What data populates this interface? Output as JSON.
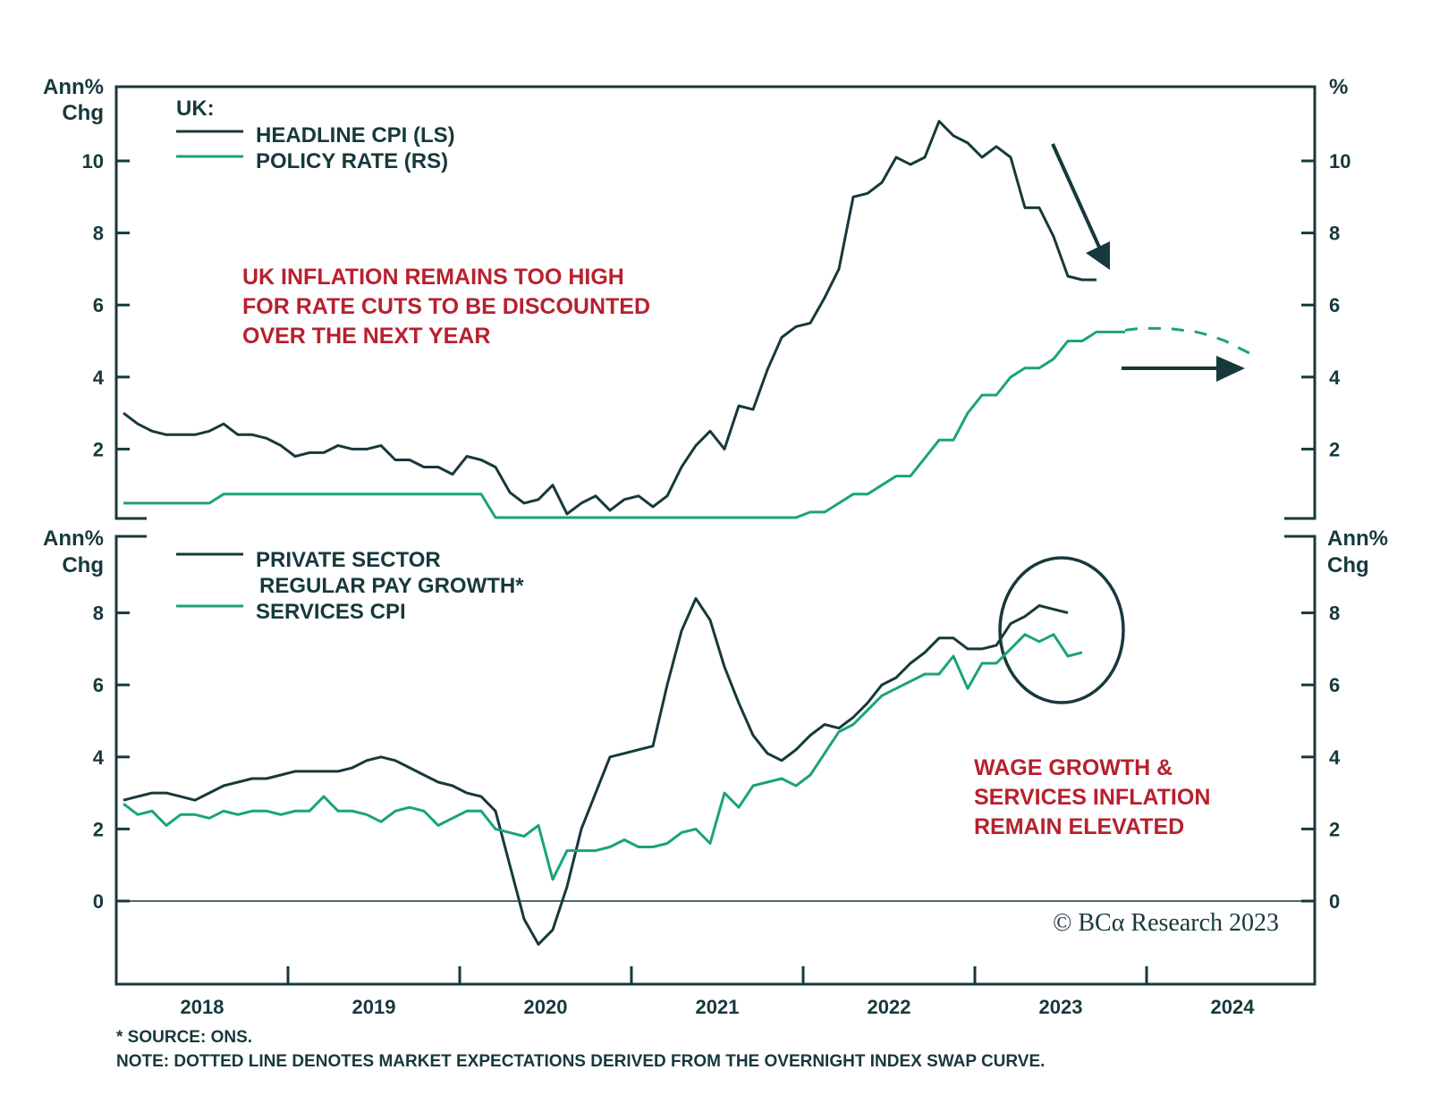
{
  "chart_data": [
    {
      "type": "line",
      "panel": "top",
      "title": "UK",
      "legend_title": "UK:",
      "ylabel_left": [
        "Ann%",
        "Chg"
      ],
      "ylabel_right": "%",
      "ylim": [
        0,
        12
      ],
      "yticks": [
        2,
        4,
        6,
        8,
        10
      ],
      "grid": false,
      "legend_position": "top-left",
      "series": [
        {
          "name": "HEADLINE CPI (LS)",
          "axis": "left",
          "color": "#17393b",
          "start": "2018-01",
          "values": [
            3.0,
            2.7,
            2.5,
            2.4,
            2.4,
            2.4,
            2.5,
            2.7,
            2.4,
            2.4,
            2.3,
            2.1,
            1.8,
            1.9,
            1.9,
            2.1,
            2.0,
            2.0,
            2.1,
            1.7,
            1.7,
            1.5,
            1.5,
            1.3,
            1.8,
            1.7,
            1.5,
            0.8,
            0.5,
            0.6,
            1.0,
            0.2,
            0.5,
            0.7,
            0.3,
            0.6,
            0.7,
            0.4,
            0.7,
            1.5,
            2.1,
            2.5,
            2.0,
            3.2,
            3.1,
            4.2,
            5.1,
            5.4,
            5.5,
            6.2,
            7.0,
            9.0,
            9.1,
            9.4,
            10.1,
            9.9,
            10.1,
            11.1,
            10.7,
            10.5,
            10.1,
            10.4,
            10.1,
            8.7,
            8.7,
            7.9,
            6.8,
            6.7,
            6.7
          ]
        },
        {
          "name": "POLICY RATE (RS)",
          "axis": "right",
          "color": "#1aa37a",
          "start": "2018-01",
          "values": [
            0.5,
            0.5,
            0.5,
            0.5,
            0.5,
            0.5,
            0.5,
            0.75,
            0.75,
            0.75,
            0.75,
            0.75,
            0.75,
            0.75,
            0.75,
            0.75,
            0.75,
            0.75,
            0.75,
            0.75,
            0.75,
            0.75,
            0.75,
            0.75,
            0.75,
            0.75,
            0.1,
            0.1,
            0.1,
            0.1,
            0.1,
            0.1,
            0.1,
            0.1,
            0.1,
            0.1,
            0.1,
            0.1,
            0.1,
            0.1,
            0.1,
            0.1,
            0.1,
            0.1,
            0.1,
            0.1,
            0.1,
            0.1,
            0.25,
            0.25,
            0.5,
            0.75,
            0.75,
            1.0,
            1.25,
            1.25,
            1.75,
            2.25,
            2.25,
            3.0,
            3.5,
            3.5,
            4.0,
            4.25,
            4.25,
            4.5,
            5.0,
            5.0,
            5.25,
            5.25,
            5.25
          ]
        },
        {
          "name": "Market expectations (OIS)",
          "axis": "right",
          "color": "#1aa37a",
          "style": "dashed",
          "start": "2023-11",
          "values": [
            5.3,
            5.35,
            5.35,
            5.35,
            5.3,
            5.25,
            5.15,
            5.0,
            4.8,
            4.6
          ]
        }
      ],
      "annotations": [
        "UK INFLATION REMAINS TOO HIGH",
        "FOR RATE CUTS TO BE DISCOUNTED",
        "OVER THE NEXT YEAR"
      ]
    },
    {
      "type": "line",
      "panel": "bottom",
      "ylabel_left": [
        "Ann%",
        "Chg"
      ],
      "ylabel_right": [
        "Ann%",
        "Chg"
      ],
      "ylim": [
        -2,
        10
      ],
      "yticks": [
        0,
        2,
        4,
        6,
        8
      ],
      "grid": false,
      "zero_line": true,
      "legend_position": "top-left",
      "series": [
        {
          "name": "PRIVATE SECTOR REGULAR PAY GROWTH*",
          "color": "#17393b",
          "start": "2018-01",
          "values": [
            2.8,
            2.9,
            3.0,
            3.0,
            2.9,
            2.8,
            3.0,
            3.2,
            3.3,
            3.4,
            3.4,
            3.5,
            3.6,
            3.6,
            3.6,
            3.6,
            3.7,
            3.9,
            4.0,
            3.9,
            3.7,
            3.5,
            3.3,
            3.2,
            3.0,
            2.9,
            2.5,
            1.0,
            -0.5,
            -1.2,
            -0.8,
            0.4,
            2.0,
            3.0,
            4.0,
            4.1,
            4.2,
            4.3,
            6.0,
            7.5,
            8.4,
            7.8,
            6.5,
            5.5,
            4.6,
            4.1,
            3.9,
            4.2,
            4.6,
            4.9,
            4.8,
            5.1,
            5.5,
            6.0,
            6.2,
            6.6,
            6.9,
            7.3,
            7.3,
            7.0,
            7.0,
            7.1,
            7.7,
            7.9,
            8.2,
            8.1,
            8.0
          ]
        },
        {
          "name": "SERVICES CPI",
          "color": "#1aa37a",
          "start": "2018-01",
          "values": [
            2.7,
            2.4,
            2.5,
            2.1,
            2.4,
            2.4,
            2.3,
            2.5,
            2.4,
            2.5,
            2.5,
            2.4,
            2.5,
            2.5,
            2.9,
            2.5,
            2.5,
            2.4,
            2.2,
            2.5,
            2.6,
            2.5,
            2.1,
            2.3,
            2.5,
            2.5,
            2.0,
            1.9,
            1.8,
            2.1,
            0.6,
            1.4,
            1.4,
            1.4,
            1.5,
            1.7,
            1.5,
            1.5,
            1.6,
            1.9,
            2.0,
            1.6,
            3.0,
            2.6,
            3.2,
            3.3,
            3.4,
            3.2,
            3.5,
            4.1,
            4.7,
            4.9,
            5.3,
            5.7,
            5.9,
            6.1,
            6.3,
            6.3,
            6.8,
            5.9,
            6.6,
            6.6,
            7.0,
            7.4,
            7.2,
            7.4,
            6.8,
            6.9
          ]
        }
      ],
      "annotations": [
        "WAGE GROWTH &",
        "SERVICES INFLATION",
        "REMAIN ELEVATED"
      ]
    }
  ],
  "x_axis": {
    "range": [
      "2018-01",
      "2024-12"
    ],
    "tick_labels": [
      "2018",
      "2019",
      "2020",
      "2021",
      "2022",
      "2023",
      "2024"
    ]
  },
  "legend_top": {
    "title": "UK:",
    "items": [
      "HEADLINE CPI (LS)",
      "POLICY RATE (RS)"
    ]
  },
  "legend_bottom": {
    "items": [
      "PRIVATE SECTOR",
      "REGULAR PAY GROWTH*",
      "SERVICES CPI"
    ]
  },
  "axis_units": {
    "top_left": [
      "Ann%",
      "Chg"
    ],
    "top_right": "%",
    "bottom_left": [
      "Ann%",
      "Chg"
    ],
    "bottom_right": [
      "Ann%",
      "Chg"
    ]
  },
  "annotations": {
    "top": [
      "UK INFLATION REMAINS TOO HIGH",
      "FOR RATE CUTS TO BE DISCOUNTED",
      "OVER THE NEXT YEAR"
    ],
    "bottom": [
      "WAGE GROWTH &",
      "SERVICES INFLATION",
      "REMAIN ELEVATED"
    ]
  },
  "copyright": "© BCα Research 2023",
  "footnotes": {
    "source": "* SOURCE: ONS.",
    "note": "NOTE: DOTTED LINE DENOTES MARKET EXPECTATIONS DERIVED FROM THE OVERNIGHT INDEX SWAP CURVE."
  },
  "colors": {
    "dark": "#17393b",
    "green": "#1aa37a",
    "red": "#b8202e"
  }
}
